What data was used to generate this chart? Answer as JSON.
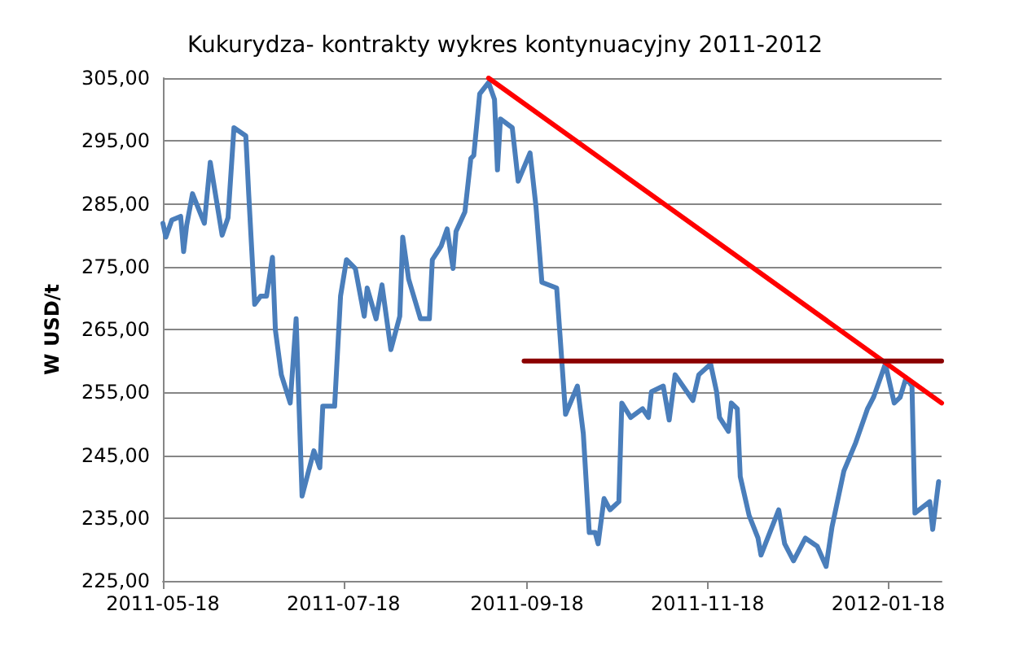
{
  "chart_data": {
    "type": "line",
    "title": "Kukurydza- kontrakty wykres kontynuacyjny 2011-2012",
    "ylabel": "W USD/t",
    "grid": "y",
    "marker": "none",
    "line_style": "solid",
    "xlim": [
      "2011-05-18",
      "2012-02-05"
    ],
    "xticks": [
      "2011-05-18",
      "2011-07-18",
      "2011-09-18",
      "2011-11-18",
      "2012-01-18"
    ],
    "ylim": [
      225,
      305
    ],
    "yticks": [
      {
        "value": 225,
        "label": "225,00"
      },
      {
        "value": 235,
        "label": "235,00"
      },
      {
        "value": 245,
        "label": "245,00"
      },
      {
        "value": 255,
        "label": "255,00"
      },
      {
        "value": 265,
        "label": "265,00"
      },
      {
        "value": 275,
        "label": "275,00"
      },
      {
        "value": 285,
        "label": "285,00"
      },
      {
        "value": 295,
        "label": "295,00"
      },
      {
        "value": 305,
        "label": "305,00"
      }
    ],
    "series": [
      {
        "color": "#4a7ebb",
        "x": [
          "2011-05-18",
          "2011-05-19",
          "2011-05-21",
          "2011-05-24",
          "2011-05-25",
          "2011-05-26",
          "2011-05-28",
          "2011-06-01",
          "2011-06-03",
          "2011-06-07",
          "2011-06-09",
          "2011-06-11",
          "2011-06-15",
          "2011-06-16",
          "2011-06-18",
          "2011-06-20",
          "2011-06-22",
          "2011-06-24",
          "2011-06-25",
          "2011-06-27",
          "2011-06-30",
          "2011-07-02",
          "2011-07-04",
          "2011-07-08",
          "2011-07-10",
          "2011-07-11",
          "2011-07-15",
          "2011-07-17",
          "2011-07-19",
          "2011-07-22",
          "2011-07-25",
          "2011-07-26",
          "2011-07-29",
          "2011-07-31",
          "2011-08-03",
          "2011-08-06",
          "2011-08-07",
          "2011-08-09",
          "2011-08-13",
          "2011-08-16",
          "2011-08-17",
          "2011-08-20",
          "2011-08-22",
          "2011-08-24",
          "2011-08-25",
          "2011-08-28",
          "2011-08-30",
          "2011-08-31",
          "2011-09-02",
          "2011-09-05",
          "2011-09-07",
          "2011-09-08",
          "2011-09-09",
          "2011-09-13",
          "2011-09-15",
          "2011-09-19",
          "2011-09-21",
          "2011-09-23",
          "2011-09-28",
          "2011-10-01",
          "2011-10-05",
          "2011-10-07",
          "2011-10-09",
          "2011-10-11",
          "2011-10-12",
          "2011-10-14",
          "2011-10-16",
          "2011-10-19",
          "2011-10-20",
          "2011-10-23",
          "2011-10-27",
          "2011-10-29",
          "2011-10-30",
          "2011-11-03",
          "2011-11-05",
          "2011-11-07",
          "2011-11-13",
          "2011-11-15",
          "2011-11-19",
          "2011-11-21",
          "2011-11-22",
          "2011-11-25",
          "2011-11-26",
          "2011-11-28",
          "2011-11-29",
          "2011-12-02",
          "2011-12-05",
          "2011-12-06",
          "2011-12-12",
          "2011-12-14",
          "2011-12-17",
          "2011-12-19",
          "2011-12-21",
          "2011-12-25",
          "2011-12-28",
          "2011-12-30",
          "2012-01-03",
          "2012-01-07",
          "2012-01-11",
          "2012-01-13",
          "2012-01-17",
          "2012-01-20",
          "2012-01-22",
          "2012-01-24",
          "2012-01-26",
          "2012-01-27",
          "2012-02-01",
          "2012-02-02",
          "2012-02-04"
        ],
        "values": [
          281.9,
          279.7,
          282.4,
          283.0,
          277.4,
          281.5,
          286.6,
          281.9,
          291.6,
          280.0,
          282.8,
          297.1,
          295.8,
          286.4,
          269.0,
          270.3,
          270.3,
          276.5,
          264.9,
          257.8,
          253.3,
          266.7,
          238.5,
          245.7,
          243.0,
          252.8,
          252.8,
          270.3,
          276.1,
          274.7,
          267.1,
          271.6,
          266.7,
          272.1,
          261.8,
          267.1,
          279.7,
          273.0,
          266.7,
          266.7,
          276.1,
          278.3,
          281.0,
          274.7,
          280.6,
          283.7,
          292.2,
          292.7,
          302.5,
          304.3,
          301.6,
          290.4,
          298.5,
          297.1,
          288.6,
          293.1,
          284.6,
          272.5,
          271.6,
          251.5,
          256.0,
          248.4,
          232.7,
          232.7,
          230.9,
          238.1,
          236.3,
          237.6,
          253.3,
          251.0,
          252.4,
          251.0,
          255.1,
          256.0,
          250.6,
          257.8,
          253.7,
          257.8,
          259.5,
          255.1,
          251.0,
          248.8,
          253.3,
          252.4,
          241.6,
          235.4,
          231.8,
          229.1,
          236.3,
          230.9,
          228.2,
          230.0,
          231.8,
          230.5,
          227.3,
          233.6,
          242.5,
          247.0,
          252.4,
          254.2,
          259.5,
          253.3,
          254.2,
          257.3,
          256.0,
          235.8,
          237.6,
          233.2,
          240.8
        ]
      },
      {
        "color": "#ff0000",
        "x": [
          "2011-09-05",
          "2012-02-05"
        ],
        "values": [
          305,
          253.3
        ]
      },
      {
        "color": "#8b0000",
        "x": [
          "2011-09-17",
          "2012-02-05"
        ],
        "values": [
          260,
          260
        ]
      }
    ]
  }
}
